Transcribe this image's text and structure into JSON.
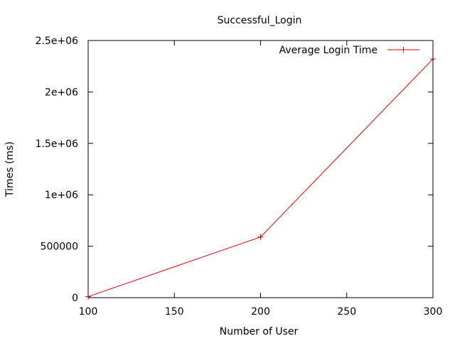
{
  "chart_data": {
    "type": "line",
    "title": "Successful_Login",
    "xlabel": "Number of User",
    "ylabel": "Times (ms)",
    "xlim": [
      100,
      300
    ],
    "ylim": [
      0,
      2500000
    ],
    "x_ticks": [
      100,
      150,
      200,
      250,
      300
    ],
    "x_tick_labels": [
      "100",
      "150",
      "200",
      "250",
      "300"
    ],
    "y_ticks": [
      0,
      500000,
      1000000,
      1500000,
      2000000,
      2500000
    ],
    "y_tick_labels": [
      "0",
      "500000",
      "1e+06",
      "1.5e+06",
      "2e+06",
      "2.5e+06"
    ],
    "grid": false,
    "legend_position": "top-right",
    "series": [
      {
        "name": "Average Login Time",
        "color": "#e00000",
        "marker": "plus",
        "x": [
          100,
          200,
          300
        ],
        "y": [
          10000,
          590000,
          2320000
        ]
      }
    ]
  }
}
